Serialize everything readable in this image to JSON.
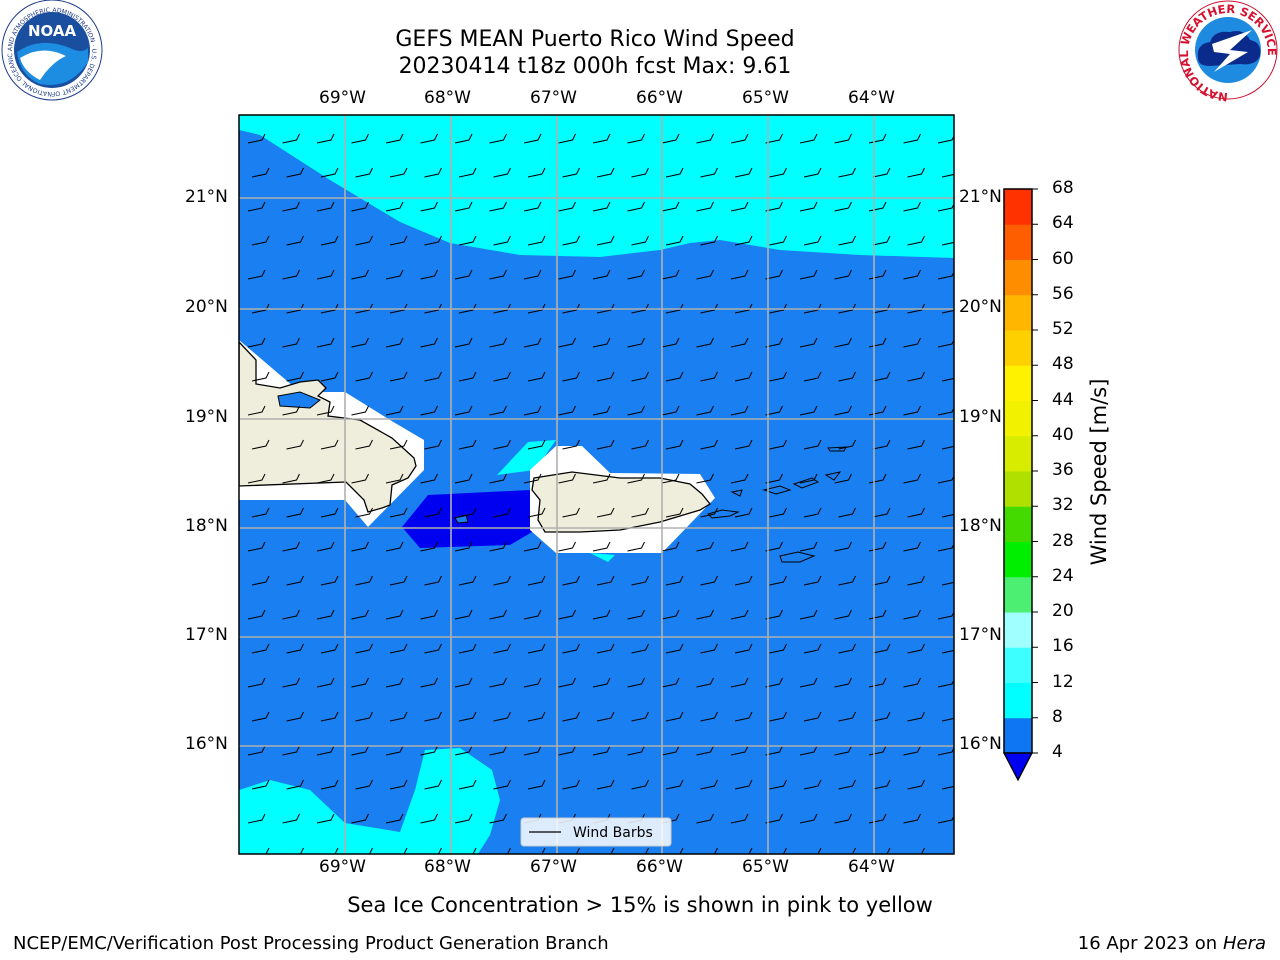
{
  "header": {
    "title_line1": "GEFS MEAN Puerto Rico Wind Speed",
    "title_line2": "20230414 t18z 000h fcst   Max: 9.61"
  },
  "logos": {
    "left": {
      "text": "NOAA",
      "ring_text": "NATIONAL OCEANIC AND ATMOSPHERIC ADMINISTRATION · U.S. DEPARTMENT OF COMMERCE"
    },
    "right": {
      "ring_text": "NATIONAL WEATHER SERVICE"
    }
  },
  "map": {
    "lon_labels": [
      "69°W",
      "68°W",
      "67°W",
      "66°W",
      "65°W",
      "64°W"
    ],
    "lat_labels": [
      "21°N",
      "20°N",
      "19°N",
      "18°N",
      "17°N",
      "16°N"
    ],
    "legend_label": "Wind Barbs"
  },
  "colorbar": {
    "label": "Wind Speed [m/s]",
    "levels": [
      "4",
      "8",
      "12",
      "16",
      "20",
      "24",
      "28",
      "32",
      "36",
      "40",
      "44",
      "48",
      "52",
      "56",
      "60",
      "64",
      "68"
    ],
    "colors": [
      "#0f76f3",
      "#00ffff",
      "#3dffff",
      "#a0ffff",
      "#4def72",
      "#00ef00",
      "#44da00",
      "#b0e000",
      "#d8ec00",
      "#f2f200",
      "#fff200",
      "#ffd000",
      "#ffb600",
      "#ff8d00",
      "#ff5e00",
      "#ff3200"
    ],
    "extend_color": "#0000f0"
  },
  "colors": {
    "ocean": "#1a7ff0",
    "cyan": "#00ffff",
    "deep_blue": "#0000f0",
    "land": "#efeedc",
    "grid": "#b0b0b0"
  },
  "footer": {
    "note": "Sea Ice Concentration > 15% is shown in pink to yellow",
    "credit": "NCEP/EMC/Verification Post Processing Product Generation Branch",
    "date": "16 Apr 2023 on",
    "machine": "Hera"
  }
}
